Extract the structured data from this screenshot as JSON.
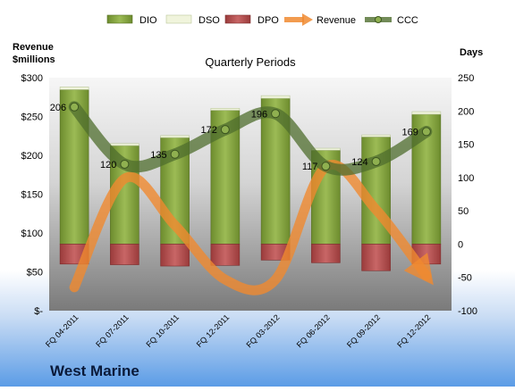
{
  "chart_data": {
    "type": "bar",
    "title": "Quarterly Periods",
    "company": "West Marine",
    "categories": [
      "FQ 04-2011",
      "FQ 07-2011",
      "FQ 10-2011",
      "FQ 12-2011",
      "FQ 03-2012",
      "FQ 06-2012",
      "FQ 09-2012",
      "FQ 12-2012"
    ],
    "left_axis": {
      "label_line1": "Revenue",
      "label_line2": "$millions",
      "ylim": [
        0,
        300
      ],
      "ticks": [
        "$-",
        "$50",
        "$100",
        "$150",
        "$200",
        "$250",
        "$300"
      ]
    },
    "right_axis": {
      "label": "Days",
      "ylim": [
        -100,
        250
      ],
      "ticks": [
        "-100",
        "-50",
        "0",
        "50",
        "100",
        "150",
        "200",
        "250"
      ]
    },
    "legend_position": "top",
    "legend": [
      "DIO",
      "DSO",
      "DPO",
      "Revenue",
      "CCC"
    ],
    "series": [
      {
        "name": "DIO",
        "color": "#7a9a3a",
        "values": [
          232,
          148,
          160,
          201,
          219,
          141,
          161,
          195
        ]
      },
      {
        "name": "DSO",
        "color": "#f0f4dc",
        "values": [
          4,
          3,
          3,
          3,
          4,
          3,
          3,
          4
        ]
      },
      {
        "name": "DPO",
        "color": "#b04a4a",
        "values": [
          -30,
          -31,
          -33,
          -32,
          -24,
          -28,
          -40,
          -30
        ]
      },
      {
        "name": "Revenue",
        "color": "#f08a30",
        "values": [
          30,
          170,
          110,
          40,
          40,
          185,
          130,
          45
        ]
      },
      {
        "name": "CCC",
        "color": "#4f6e2e",
        "values": [
          206,
          120,
          135,
          172,
          196,
          117,
          124,
          169
        ]
      }
    ],
    "ccc_labels": [
      "206",
      "120",
      "135",
      "172",
      "196",
      "117",
      "124",
      "169"
    ]
  }
}
